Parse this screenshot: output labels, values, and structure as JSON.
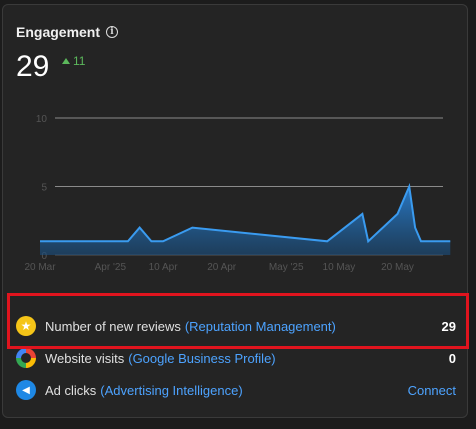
{
  "header": {
    "title": "Engagement",
    "value": "29",
    "delta": "11"
  },
  "colors": {
    "accent_link": "#4da3ff",
    "delta_green": "#5cb85c",
    "area_fill": "#1f6fb5",
    "highlight": "#e0141e"
  },
  "chart_data": {
    "type": "area",
    "x": [
      "2025-03-20",
      "2025-03-25",
      "2025-04-01",
      "2025-04-04",
      "2025-04-06",
      "2025-04-08",
      "2025-04-10",
      "2025-04-15",
      "2025-05-08",
      "2025-05-14",
      "2025-05-15",
      "2025-05-20",
      "2025-05-22",
      "2025-05-23",
      "2025-05-24",
      "2025-05-27",
      "2025-05-29"
    ],
    "values": [
      1,
      1,
      1,
      1,
      2,
      1,
      1,
      2,
      1,
      3,
      1,
      3,
      5,
      2,
      1,
      1,
      1
    ],
    "x_ticks": [
      "20 Mar",
      "Apr '25",
      "10 Apr",
      "20 Apr",
      "May '25",
      "10 May",
      "20 May"
    ],
    "y_ticks": [
      "0",
      "5",
      "10"
    ],
    "ylim": [
      0,
      10
    ],
    "grid": true
  },
  "metrics": [
    {
      "label": "Number of new reviews",
      "source": "(Reputation Management)",
      "value": "29",
      "icon": "star-icon"
    },
    {
      "label": "Website visits",
      "source": "(Google Business Profile)",
      "value": "0",
      "icon": "google-icon"
    },
    {
      "label": "Ad clicks",
      "source": "(Advertising Intelligence)",
      "action": "Connect",
      "icon": "megaphone-icon"
    }
  ]
}
